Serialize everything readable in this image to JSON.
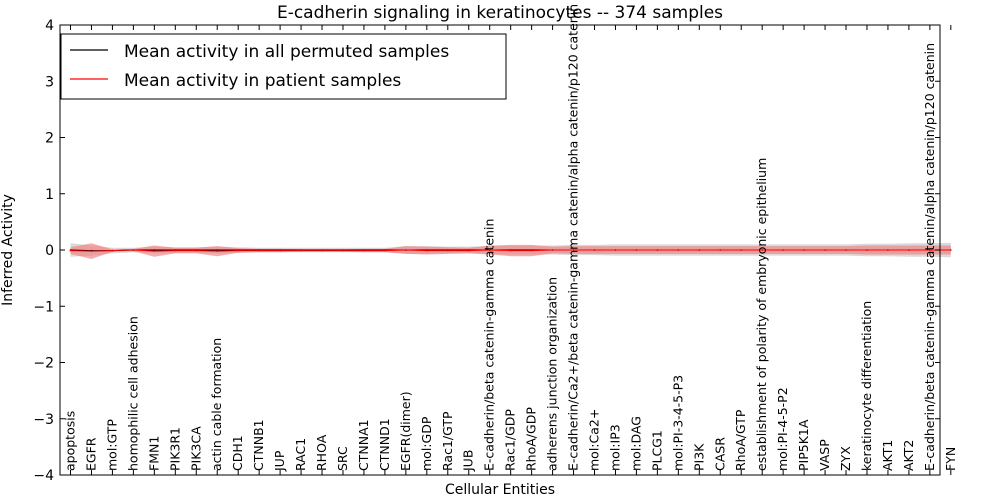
{
  "chart_data": {
    "type": "line",
    "title": "E-cadherin signaling in keratinocytes -- 374 samples",
    "xlabel": "Cellular Entities",
    "ylabel": "Inferred Activity",
    "ylim": [
      -4,
      4
    ],
    "yticks": [
      -4,
      -3,
      -2,
      -1,
      0,
      1,
      2,
      3,
      4
    ],
    "ytick_labels": [
      "−4",
      "−3",
      "−2",
      "−1",
      "0",
      "1",
      "2",
      "3",
      "4"
    ],
    "grid": false,
    "legend_position": "top-left",
    "categories": [
      "apoptosis",
      "EGFR",
      "mol:GTP",
      "homophilic cell adhesion",
      "FMN1",
      "PIK3R1",
      "PIK3CA",
      "actin cable formation",
      "CDH1",
      "CTNNB1",
      "JUP",
      "RAC1",
      "RHOA",
      "SRC",
      "CTNNA1",
      "CTNND1",
      "EGFR(dimer)",
      "mol:GDP",
      "Rac1/GTP",
      "JUB",
      "E-cadherin/beta catenin-gamma catenin",
      "Rac1/GDP",
      "RhoA/GDP",
      "adherens junction organization",
      "E-cadherin/Ca2+/beta catenin-gamma catenin/alpha catenin/p120 catenin",
      "mol:Ca2+",
      "mol:IP3",
      "mol:DAG",
      "PLCG1",
      "mol:PI-3-4-5-P3",
      "PI3K",
      "CASR",
      "RhoA/GTP",
      "establishment of polarity of embryonic epithelium",
      "mol:PI-4-5-P2",
      "PIP5K1A",
      "VASP",
      "ZYX",
      "keratinocyte differentiation",
      "AKT1",
      "AKT2",
      "E-cadherin/beta catenin-gamma catenin/alpha catenin/p120 catenin",
      "FYN"
    ],
    "series": [
      {
        "name": "Mean activity in all permuted samples",
        "color": "#000000",
        "band_color": "#bfbfbf",
        "values": [
          0.0,
          -0.01,
          -0.01,
          0.0,
          0.0,
          0.0,
          0.0,
          0.0,
          0.0,
          0.0,
          0.0,
          0.0,
          0.0,
          0.0,
          0.0,
          0.0,
          0.0,
          0.0,
          0.0,
          0.0,
          0.0,
          0.0,
          0.0,
          0.0,
          0.0,
          0.0,
          0.0,
          0.0,
          0.0,
          0.0,
          0.0,
          0.0,
          0.0,
          0.0,
          0.0,
          0.0,
          0.0,
          0.0,
          0.0,
          0.0,
          0.0,
          0.0,
          0.0
        ],
        "band_half_width": [
          0.12,
          0.09,
          0.05,
          0.04,
          0.06,
          0.05,
          0.05,
          0.06,
          0.05,
          0.04,
          0.04,
          0.04,
          0.04,
          0.04,
          0.04,
          0.04,
          0.07,
          0.07,
          0.06,
          0.06,
          0.07,
          0.08,
          0.08,
          0.08,
          0.09,
          0.09,
          0.1,
          0.1,
          0.1,
          0.1,
          0.1,
          0.1,
          0.1,
          0.1,
          0.1,
          0.1,
          0.1,
          0.1,
          0.11,
          0.11,
          0.12,
          0.12,
          0.13
        ]
      },
      {
        "name": "Mean activity in patient samples",
        "color": "#ff0000",
        "band_color": "#f08080",
        "values": [
          -0.01,
          -0.02,
          -0.01,
          0.0,
          -0.02,
          -0.01,
          -0.01,
          -0.02,
          -0.01,
          -0.01,
          -0.01,
          -0.01,
          -0.01,
          -0.01,
          -0.01,
          -0.01,
          0.0,
          -0.01,
          -0.01,
          -0.01,
          0.0,
          -0.01,
          -0.01,
          0.0,
          0.0,
          0.0,
          0.0,
          0.0,
          0.0,
          0.0,
          0.0,
          0.0,
          0.0,
          0.0,
          0.0,
          0.0,
          0.0,
          0.0,
          0.0,
          0.0,
          0.0,
          0.0,
          0.0
        ],
        "band_half_width": [
          0.06,
          0.14,
          0.02,
          0.02,
          0.1,
          0.05,
          0.05,
          0.09,
          0.04,
          0.03,
          0.03,
          0.02,
          0.02,
          0.02,
          0.03,
          0.03,
          0.07,
          0.07,
          0.06,
          0.05,
          0.08,
          0.1,
          0.1,
          0.06,
          0.07,
          0.07,
          0.07,
          0.07,
          0.07,
          0.07,
          0.07,
          0.07,
          0.07,
          0.07,
          0.07,
          0.07,
          0.07,
          0.07,
          0.08,
          0.08,
          0.08,
          0.08,
          0.08
        ]
      }
    ]
  }
}
